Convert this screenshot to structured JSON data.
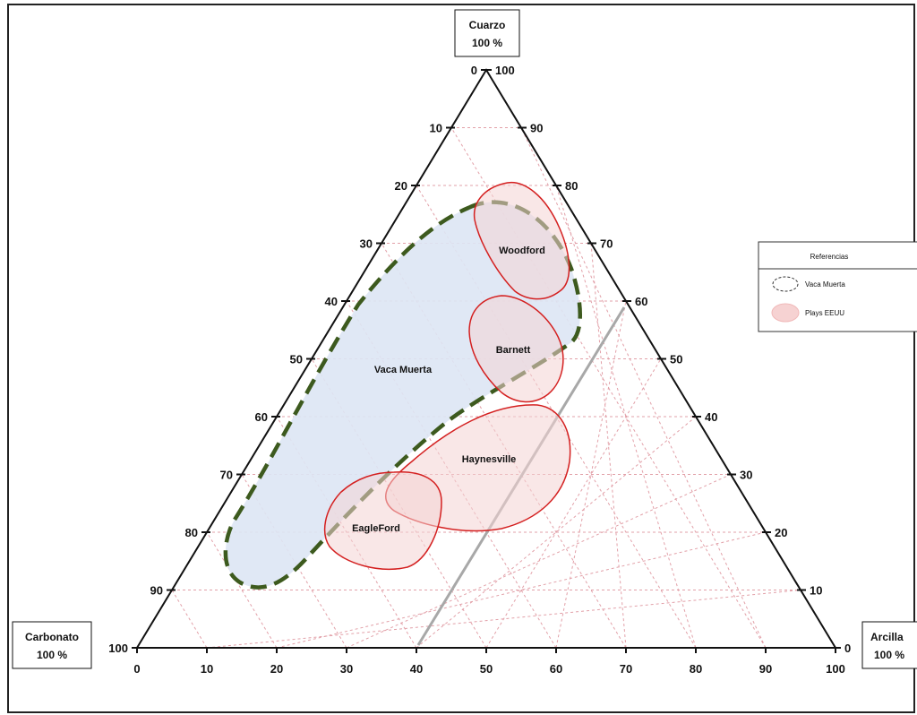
{
  "vertices": {
    "top": {
      "name": "Cuarzo",
      "pct": "100 %"
    },
    "left": {
      "name": "Carbonato",
      "pct": "100 %"
    },
    "right": {
      "name": "Arcilla",
      "pct": "100 %"
    }
  },
  "ticks": {
    "bottom": [
      "0",
      "10",
      "20",
      "30",
      "40",
      "50",
      "60",
      "70",
      "80",
      "90",
      "100"
    ],
    "left": [
      "0",
      "10",
      "20",
      "30",
      "40",
      "50",
      "60",
      "70",
      "80",
      "90",
      "100"
    ],
    "right": [
      "100",
      "90",
      "80",
      "70",
      "60",
      "50",
      "40",
      "30",
      "20",
      "10",
      "0"
    ]
  },
  "regions": {
    "vaca_muerta": "Vaca Muerta",
    "woodford": "Woodford",
    "barnett": "Barnett",
    "haynesville": "Haynesville",
    "eagleford": "EagleFord"
  },
  "legend": {
    "title": "Referencias",
    "vaca_muerta": "Vaca Muerta",
    "plays": "Plays EEUU"
  },
  "colors": {
    "grid": "#e2a0a8",
    "vaca_fill": "#dde6f4",
    "vaca_stroke": "#3d5a1e",
    "play_fill": "#f4d4d4",
    "play_stroke": "#d42020",
    "cutoff_line": "#a8a8a8"
  }
}
